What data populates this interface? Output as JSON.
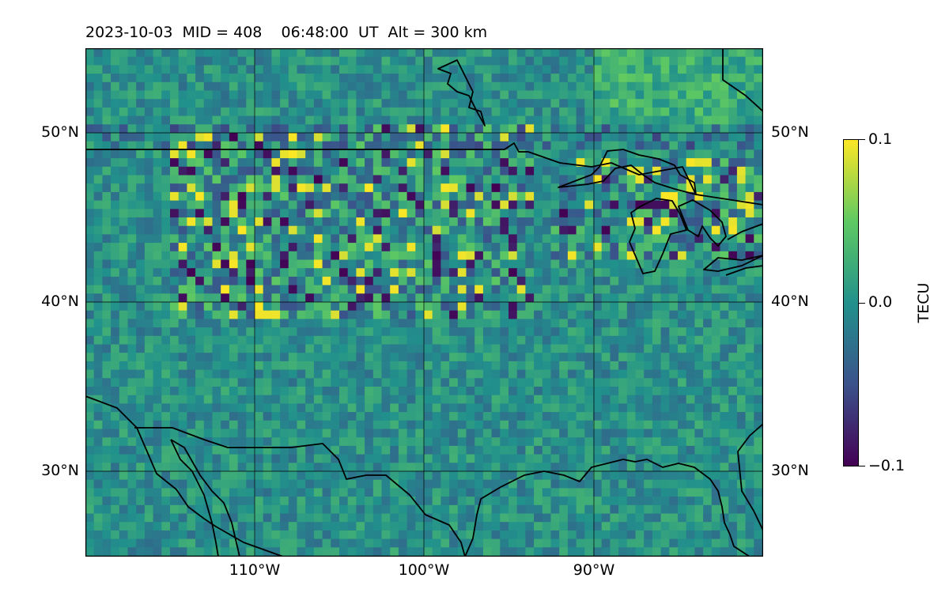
{
  "title": "2023-10-03  MID = 408    06:48:00  UT  Alt = 300 km",
  "map": {
    "lat_labels_left": [
      "50°N",
      "40°N",
      "30°N"
    ],
    "lat_labels_right": [
      "50°N",
      "40°N",
      "30°N"
    ],
    "lon_labels": [
      "110°W",
      "100°W",
      "90°W"
    ],
    "extent": {
      "lon_min": -120,
      "lon_max": -80,
      "lat_min": 25,
      "lat_max": 55
    }
  },
  "colorbar": {
    "label": "TECU",
    "ticks": [
      "0.1",
      "0.0",
      "−0.1"
    ],
    "vmin": -0.1,
    "vmax": 0.1,
    "colormap": "viridis",
    "colors": [
      "#440154",
      "#3b528b",
      "#21918c",
      "#5ec962",
      "#fde725"
    ]
  },
  "field": {
    "background_color": "#2a8a86",
    "strong_positive": "#fde725",
    "strong_negative": "#440154"
  }
}
